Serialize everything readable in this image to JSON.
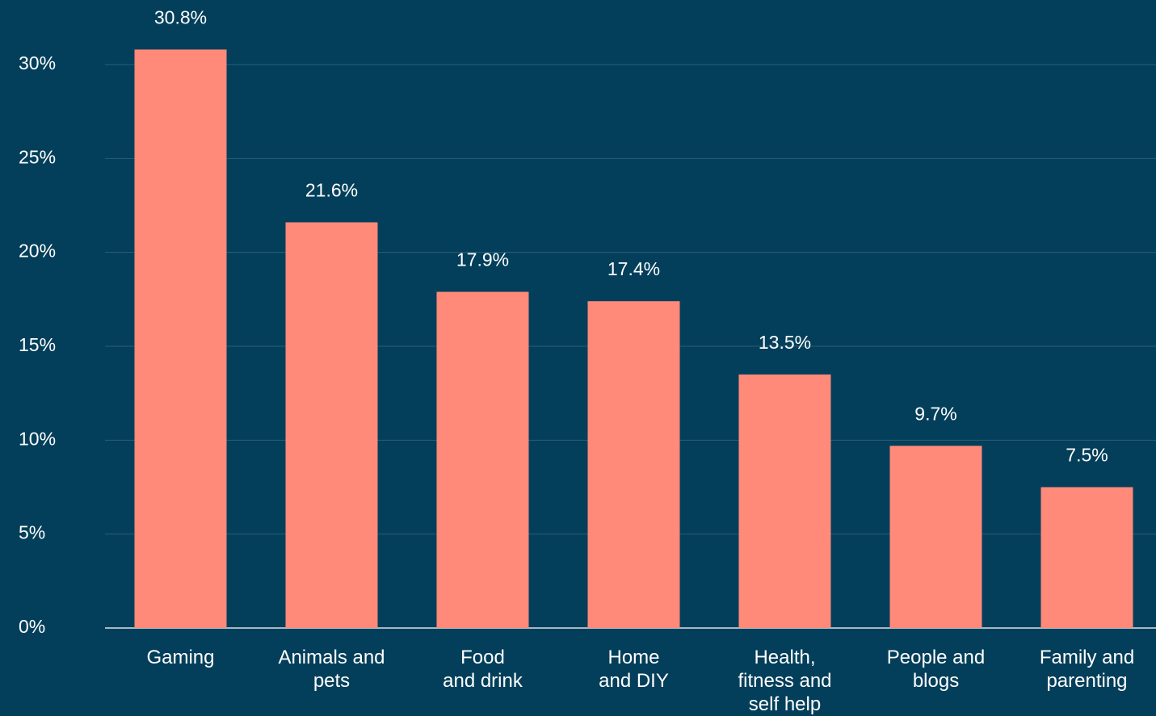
{
  "chart_data": {
    "type": "bar",
    "categories": [
      "Gaming",
      "Animals and\npets",
      "Food\nand drink",
      "Home\nand DIY",
      "Health,\nfitness and\nself help",
      "People and\nblogs",
      "Family and\nparenting"
    ],
    "values": [
      30.8,
      21.6,
      17.9,
      17.4,
      13.5,
      9.7,
      7.5
    ],
    "value_labels": [
      "30.8%",
      "21.6%",
      "17.9%",
      "17.4%",
      "13.5%",
      "9.7%",
      "7.5%"
    ],
    "color": "#ff8a7a",
    "ylim": [
      0,
      30
    ],
    "yticks": [
      {
        "value": 0,
        "label": "0%"
      },
      {
        "value": 5,
        "label": "5%"
      },
      {
        "value": 10,
        "label": "10%"
      },
      {
        "value": 15,
        "label": "15%"
      },
      {
        "value": 20,
        "label": "20%"
      },
      {
        "value": 25,
        "label": "25%"
      },
      {
        "value": 30,
        "label": "30%"
      }
    ],
    "grid": true
  }
}
